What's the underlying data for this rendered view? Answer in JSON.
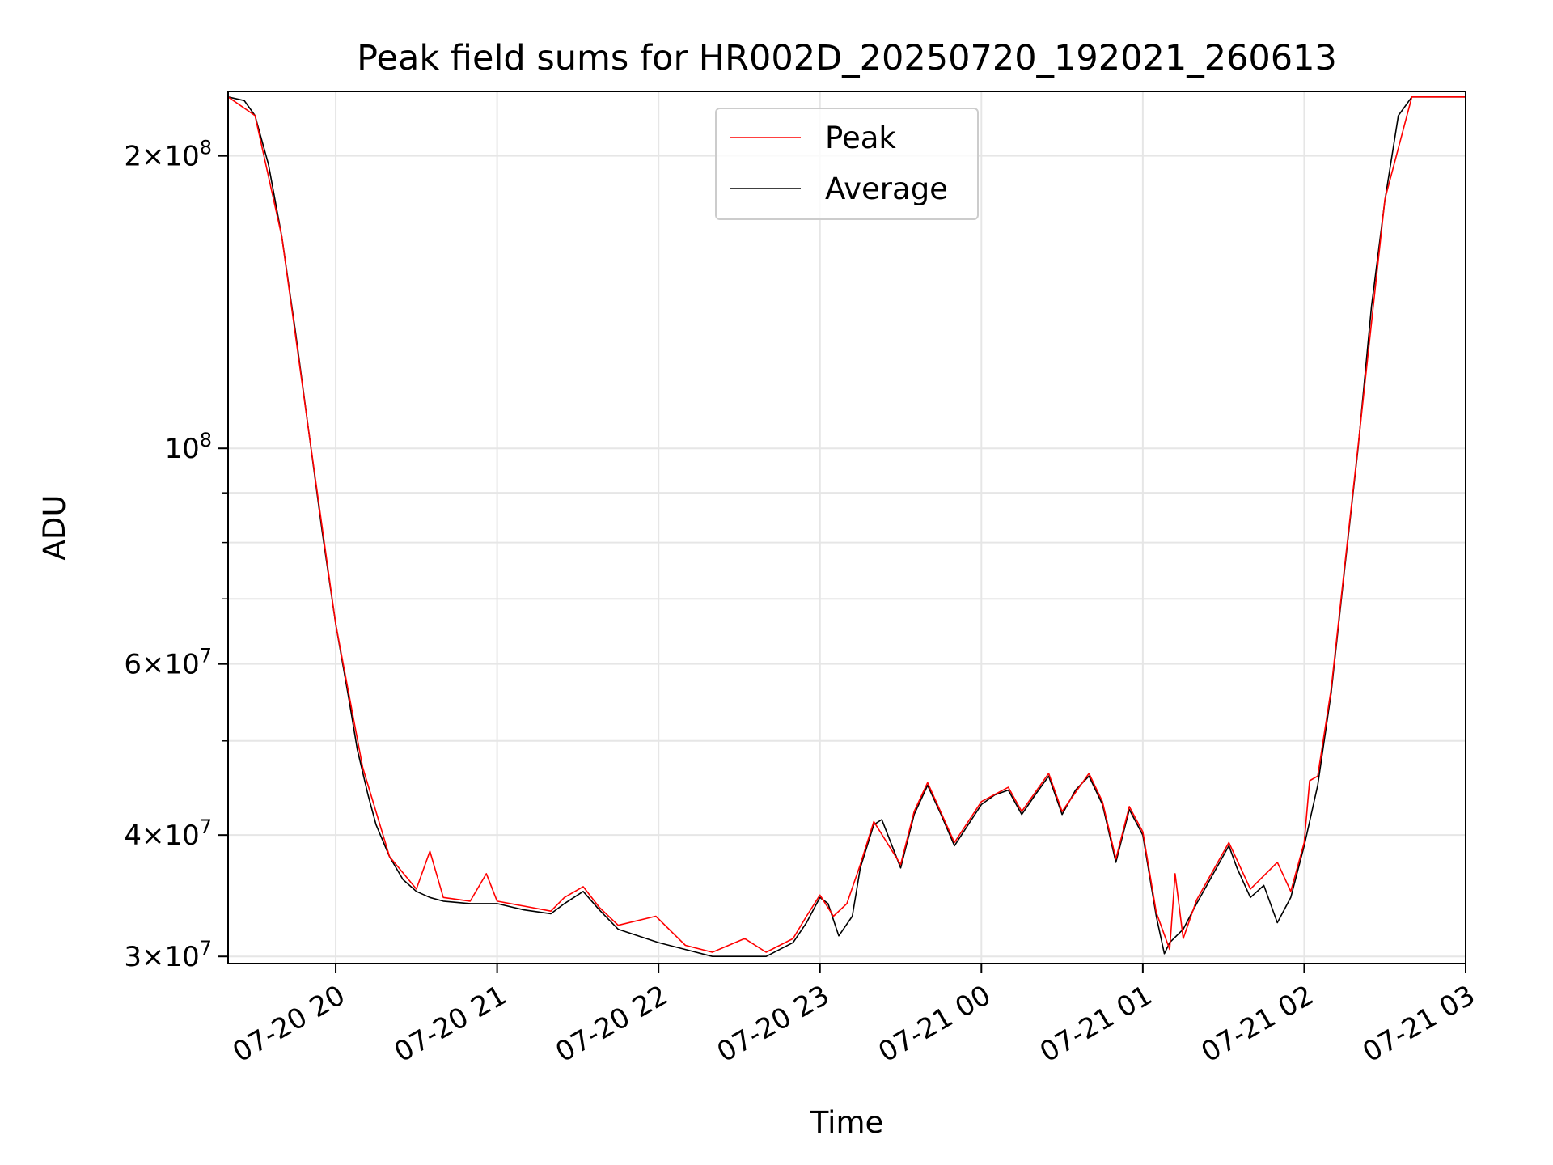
{
  "chart_data": {
    "type": "line",
    "title": "Peak field sums for HR002D_20250720_192021_260613",
    "xlabel": "Time",
    "ylabel": "ADU",
    "y_scale": "log",
    "ylim": [
      29500000,
      233000000
    ],
    "xlim": [
      "2025-07-20 19:20",
      "2025-07-21 03:00"
    ],
    "grid": true,
    "legend": {
      "placement": "upper center",
      "entries": [
        "Peak",
        "Average"
      ]
    },
    "x_ticks": [
      {
        "t": "2025-07-20 20:00",
        "label": "07-20 20"
      },
      {
        "t": "2025-07-20 21:00",
        "label": "07-20 21"
      },
      {
        "t": "2025-07-20 22:00",
        "label": "07-20 22"
      },
      {
        "t": "2025-07-20 23:00",
        "label": "07-20 23"
      },
      {
        "t": "2025-07-21 00:00",
        "label": "07-21 00"
      },
      {
        "t": "2025-07-21 01:00",
        "label": "07-21 01"
      },
      {
        "t": "2025-07-21 02:00",
        "label": "07-21 02"
      },
      {
        "t": "2025-07-21 03:00",
        "label": "07-21 03"
      }
    ],
    "y_ticks": [
      {
        "value": 30000000,
        "mantissa": "3",
        "exp": "7"
      },
      {
        "value": 40000000,
        "mantissa": "4",
        "exp": "7"
      },
      {
        "value": 60000000,
        "mantissa": "6",
        "exp": "7"
      },
      {
        "value": 100000000,
        "mantissa": "",
        "exp": "8"
      },
      {
        "value": 200000000,
        "mantissa": "2",
        "exp": "8"
      }
    ],
    "y_minor_ticks": [
      50000000,
      70000000,
      80000000,
      90000000
    ],
    "series": [
      {
        "name": "Average",
        "color": "#000000",
        "x": [
          "2025-07-20 19:20",
          "2025-07-20 19:26",
          "2025-07-20 19:30",
          "2025-07-20 19:35",
          "2025-07-20 19:40",
          "2025-07-20 19:45",
          "2025-07-20 19:50",
          "2025-07-20 19:55",
          "2025-07-20 20:00",
          "2025-07-20 20:05",
          "2025-07-20 20:08",
          "2025-07-20 20:12",
          "2025-07-20 20:15",
          "2025-07-20 20:20",
          "2025-07-20 20:25",
          "2025-07-20 20:30",
          "2025-07-20 20:35",
          "2025-07-20 20:40",
          "2025-07-20 20:50",
          "2025-07-20 21:00",
          "2025-07-20 21:10",
          "2025-07-20 21:20",
          "2025-07-20 21:25",
          "2025-07-20 21:32",
          "2025-07-20 21:38",
          "2025-07-20 21:45",
          "2025-07-20 22:00",
          "2025-07-20 22:10",
          "2025-07-20 22:20",
          "2025-07-20 22:30",
          "2025-07-20 22:40",
          "2025-07-20 22:50",
          "2025-07-20 22:55",
          "2025-07-20 23:00",
          "2025-07-20 23:03",
          "2025-07-20 23:07",
          "2025-07-20 23:12",
          "2025-07-20 23:15",
          "2025-07-20 23:20",
          "2025-07-20 23:23",
          "2025-07-20 23:30",
          "2025-07-20 23:35",
          "2025-07-20 23:40",
          "2025-07-20 23:45",
          "2025-07-20 23:50",
          "2025-07-21 00:00",
          "2025-07-21 00:05",
          "2025-07-21 00:10",
          "2025-07-21 00:15",
          "2025-07-21 00:20",
          "2025-07-21 00:25",
          "2025-07-21 00:30",
          "2025-07-21 00:35",
          "2025-07-21 00:40",
          "2025-07-21 00:45",
          "2025-07-21 00:50",
          "2025-07-21 00:55",
          "2025-07-21 01:00",
          "2025-07-21 01:05",
          "2025-07-21 01:08",
          "2025-07-21 01:10",
          "2025-07-21 01:15",
          "2025-07-21 01:20",
          "2025-07-21 01:25",
          "2025-07-21 01:32",
          "2025-07-21 01:35",
          "2025-07-21 01:40",
          "2025-07-21 01:45",
          "2025-07-21 01:50",
          "2025-07-21 01:55",
          "2025-07-21 02:00",
          "2025-07-21 02:05",
          "2025-07-21 02:10",
          "2025-07-21 02:15",
          "2025-07-21 02:20",
          "2025-07-21 02:25",
          "2025-07-21 02:30",
          "2025-07-21 02:35",
          "2025-07-21 02:40",
          "2025-07-21 02:45",
          "2025-07-21 03:00"
        ],
        "y": [
          230000000,
          228000000,
          220000000,
          196000000,
          165000000,
          132000000,
          104000000,
          82000000,
          66000000,
          55000000,
          49000000,
          44000000,
          41000000,
          38000000,
          36000000,
          35000000,
          34500000,
          34200000,
          34000000,
          34000000,
          33500000,
          33200000,
          34000000,
          35000000,
          33500000,
          32000000,
          31000000,
          30500000,
          30000000,
          30000000,
          30000000,
          31000000,
          32500000,
          34500000,
          34000000,
          31500000,
          33000000,
          37000000,
          41000000,
          41500000,
          37000000,
          42000000,
          45000000,
          42000000,
          39000000,
          43000000,
          44000000,
          44500000,
          42000000,
          44000000,
          46000000,
          42000000,
          44500000,
          46000000,
          43000000,
          37500000,
          42500000,
          40000000,
          33000000,
          30200000,
          31000000,
          32000000,
          34000000,
          36000000,
          39000000,
          37000000,
          34500000,
          35500000,
          32500000,
          34500000,
          39000000,
          45000000,
          56000000,
          75000000,
          100000000,
          140000000,
          180000000,
          220000000,
          230000000,
          230000000,
          230000000
        ]
      },
      {
        "name": "Peak",
        "color": "#ff0000",
        "x": [
          "2025-07-20 19:20",
          "2025-07-20 19:30",
          "2025-07-20 19:40",
          "2025-07-20 19:50",
          "2025-07-20 20:00",
          "2025-07-20 20:10",
          "2025-07-20 20:20",
          "2025-07-20 20:30",
          "2025-07-20 20:35",
          "2025-07-20 20:40",
          "2025-07-20 20:50",
          "2025-07-20 20:56",
          "2025-07-20 21:00",
          "2025-07-20 21:10",
          "2025-07-20 21:20",
          "2025-07-20 21:25",
          "2025-07-20 21:32",
          "2025-07-20 21:38",
          "2025-07-20 21:45",
          "2025-07-20 21:59",
          "2025-07-20 22:10",
          "2025-07-20 22:20",
          "2025-07-20 22:32",
          "2025-07-20 22:40",
          "2025-07-20 22:50",
          "2025-07-20 22:55",
          "2025-07-20 23:00",
          "2025-07-20 23:05",
          "2025-07-20 23:10",
          "2025-07-20 23:15",
          "2025-07-20 23:20",
          "2025-07-20 23:30",
          "2025-07-20 23:35",
          "2025-07-20 23:40",
          "2025-07-20 23:50",
          "2025-07-21 00:00",
          "2025-07-21 00:10",
          "2025-07-21 00:15",
          "2025-07-21 00:25",
          "2025-07-21 00:30",
          "2025-07-21 00:40",
          "2025-07-21 00:45",
          "2025-07-21 00:50",
          "2025-07-21 00:55",
          "2025-07-21 01:00",
          "2025-07-21 01:05",
          "2025-07-21 01:10",
          "2025-07-21 01:12",
          "2025-07-21 01:15",
          "2025-07-21 01:20",
          "2025-07-21 01:25",
          "2025-07-21 01:32",
          "2025-07-21 01:40",
          "2025-07-21 01:50",
          "2025-07-21 01:55",
          "2025-07-21 02:00",
          "2025-07-21 02:02",
          "2025-07-21 02:05",
          "2025-07-21 02:10",
          "2025-07-21 02:15",
          "2025-07-21 02:20",
          "2025-07-21 02:30",
          "2025-07-21 02:40",
          "2025-07-21 03:00"
        ],
        "y": [
          230000000,
          220000000,
          165000000,
          104000000,
          66000000,
          47000000,
          38000000,
          35200000,
          38500000,
          34500000,
          34200000,
          36500000,
          34200000,
          33800000,
          33400000,
          34500000,
          35400000,
          33700000,
          32300000,
          33000000,
          30800000,
          30300000,
          31300000,
          30300000,
          31300000,
          33000000,
          34700000,
          33000000,
          34000000,
          37300000,
          41300000,
          37300000,
          42300000,
          45300000,
          39300000,
          43300000,
          44800000,
          42300000,
          46300000,
          42300000,
          46300000,
          43300000,
          37800000,
          42800000,
          40300000,
          33300000,
          30500000,
          36500000,
          31300000,
          34300000,
          36300000,
          39300000,
          35200000,
          37500000,
          35000000,
          39300000,
          45500000,
          46000000,
          56500000,
          75500000,
          100500000,
          180500000,
          230000000,
          230000000
        ]
      }
    ]
  }
}
